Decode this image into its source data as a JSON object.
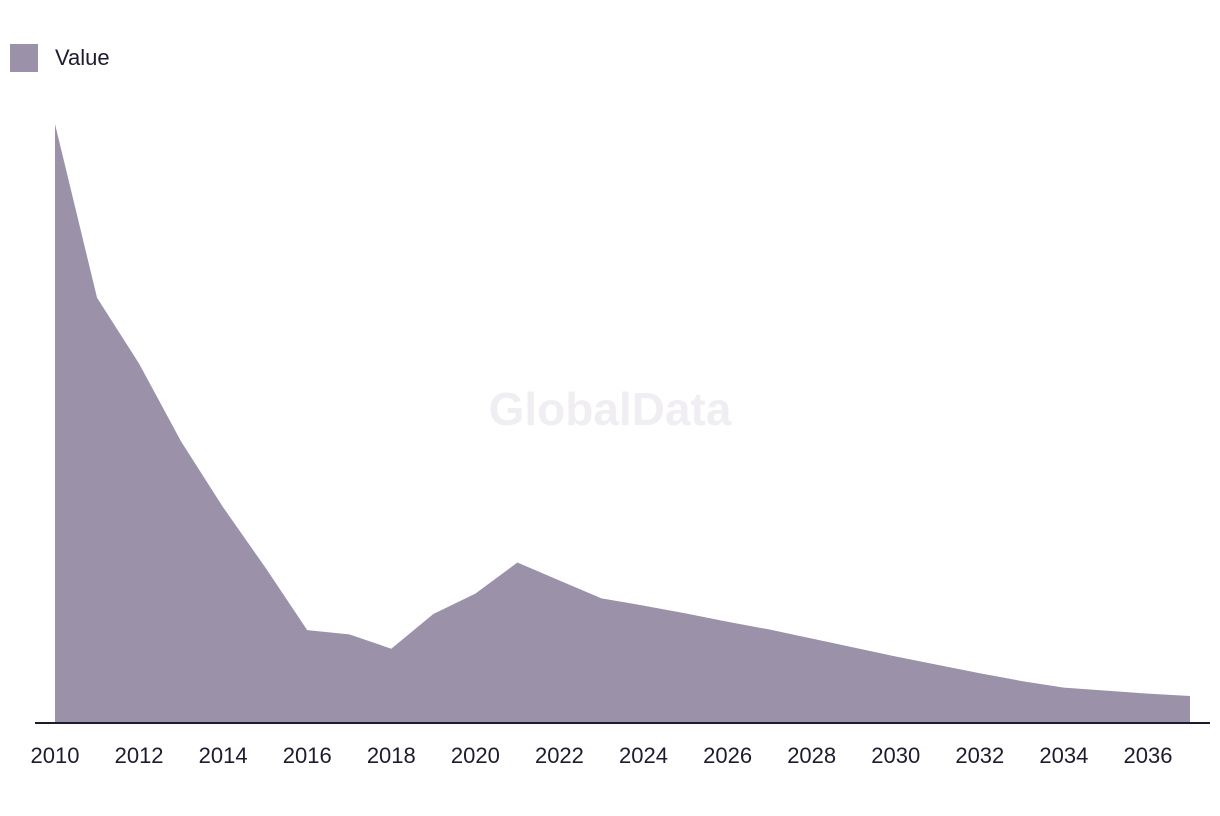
{
  "legend": {
    "label": "Value"
  },
  "watermark": "GlobalData",
  "colors": {
    "area": "#9b91a9",
    "axis": "#1f1b2e"
  },
  "chart_data": {
    "type": "area",
    "title": "",
    "xlabel": "",
    "ylabel": "",
    "ylim": [
      0,
      100
    ],
    "x": [
      2010,
      2011,
      2012,
      2013,
      2014,
      2015,
      2016,
      2017,
      2018,
      2019,
      2020,
      2021,
      2022,
      2023,
      2024,
      2025,
      2026,
      2027,
      2028,
      2029,
      2030,
      2031,
      2032,
      2033,
      2034,
      2035,
      2036,
      2037
    ],
    "series": [
      {
        "name": "Value",
        "values": [
          100,
          71,
          60,
          47,
          36,
          26,
          15.5,
          14.8,
          12.4,
          18.2,
          21.6,
          26.8,
          23.8,
          20.8,
          19.6,
          18.3,
          16.9,
          15.6,
          14.1,
          12.6,
          11.1,
          9.7,
          8.3,
          7.0,
          5.9,
          5.4,
          4.9,
          4.5
        ]
      }
    ],
    "xticks": [
      "2010",
      "2012",
      "2014",
      "2016",
      "2018",
      "2020",
      "2022",
      "2024",
      "2026",
      "2028",
      "2030",
      "2032",
      "2034",
      "2036"
    ],
    "grid": false,
    "legend_position": "top-left"
  }
}
